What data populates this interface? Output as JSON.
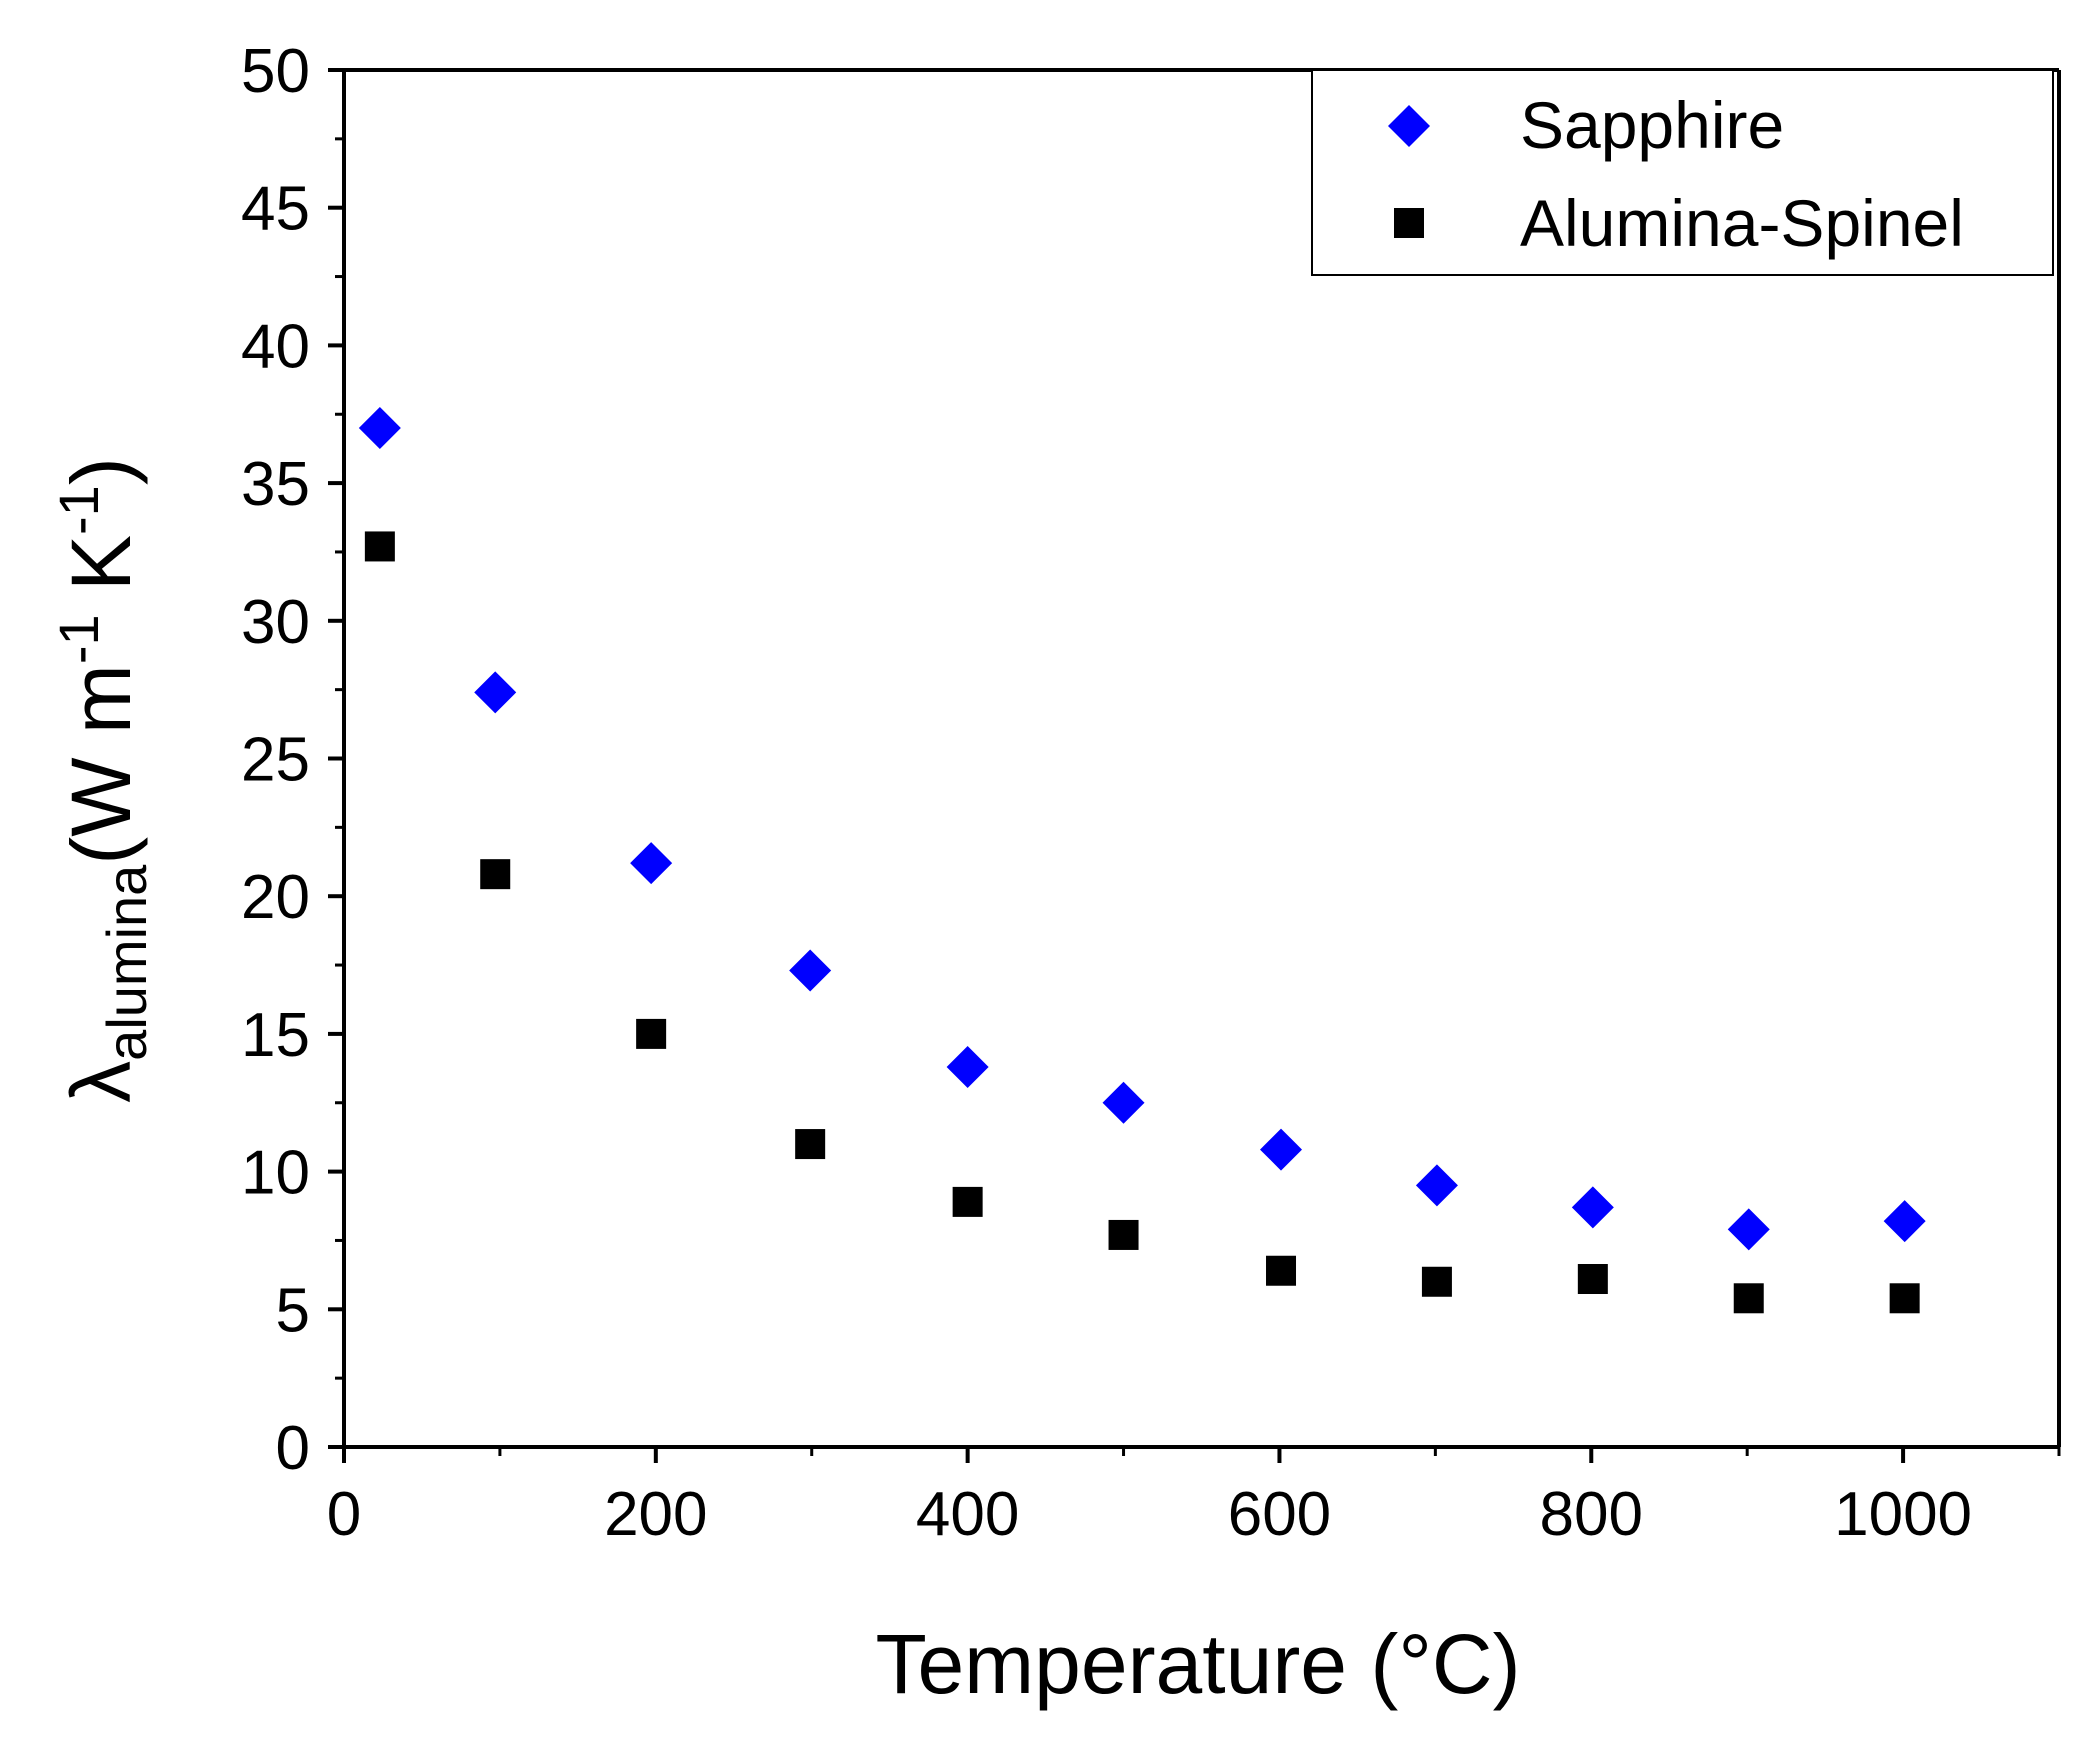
{
  "chart_data": {
    "type": "scatter",
    "title": "",
    "xlabel": "Temperature (°C)",
    "ylabel": {
      "symbol": "λ",
      "subscript": "alumina",
      "open": "(W m",
      "exp1": "-1",
      "mid": " K",
      "exp2": "-1",
      "close": ")"
    },
    "xlim": [
      0,
      1100
    ],
    "ylim": [
      0,
      50
    ],
    "x_ticks": [
      0,
      200,
      400,
      600,
      800,
      1000
    ],
    "y_ticks": [
      0,
      5,
      10,
      15,
      20,
      25,
      30,
      35,
      40,
      45,
      50
    ],
    "grid": false,
    "legend_position": "top-right",
    "series": [
      {
        "name": "Sapphire",
        "marker": "diamond",
        "color": "#0000ff",
        "x": [
          23,
          97,
          197,
          299,
          400,
          500,
          601,
          701,
          801,
          901,
          1001
        ],
        "y": [
          37.0,
          27.4,
          21.2,
          17.3,
          13.8,
          12.5,
          10.8,
          9.5,
          8.7,
          7.9,
          8.2
        ]
      },
      {
        "name": "Alumina-Spinel",
        "marker": "square",
        "color": "#000000",
        "x": [
          23,
          97,
          197,
          299,
          400,
          500,
          601,
          701,
          801,
          901,
          1001
        ],
        "y": [
          32.7,
          20.8,
          15.0,
          11.0,
          8.9,
          7.7,
          6.4,
          6.0,
          6.1,
          5.4,
          5.4
        ]
      }
    ]
  }
}
